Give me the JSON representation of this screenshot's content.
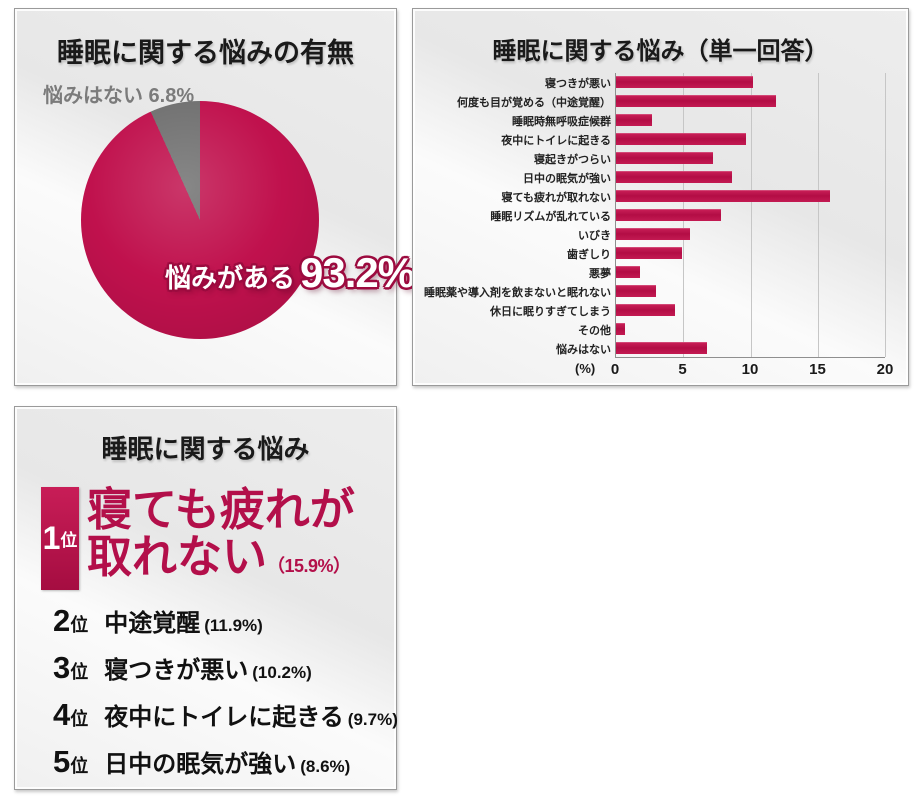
{
  "colors": {
    "crimson": "#c0114d",
    "gray_slice": "#707070",
    "panel_bg": "#ececec"
  },
  "panel1": {
    "title": "睡眠に関する悩みの有無",
    "no_label": "悩みはない 6.8%",
    "yes_label": "悩みがある",
    "yes_value": "93.2%"
  },
  "panel2": {
    "title": "睡眠に関する悩み（単一回答）",
    "unit": "(%)",
    "ticks": [
      "0",
      "5",
      "10",
      "15",
      "20"
    ]
  },
  "panel3": {
    "title": "睡眠に関する悩み",
    "rank1": {
      "rank": "1",
      "suffix": "位",
      "line1": "寝ても疲れが",
      "line2": "取れない",
      "pct": "（15.9%）"
    },
    "ranks": [
      {
        "rank": "2",
        "suffix": "位",
        "label": "中途覚醒",
        "pct": "(11.9%)"
      },
      {
        "rank": "3",
        "suffix": "位",
        "label": "寝つきが悪い",
        "pct": "(10.2%)"
      },
      {
        "rank": "4",
        "suffix": "位",
        "label": "夜中にトイレに起きる",
        "pct": "(9.7%)"
      },
      {
        "rank": "5",
        "suffix": "位",
        "label": "日中の眠気が強い",
        "pct": "(8.6%)"
      }
    ]
  },
  "chart_data": [
    {
      "type": "pie",
      "title": "睡眠に関する悩みの有無",
      "labels": [
        "悩みがある",
        "悩みはない"
      ],
      "values": [
        93.2,
        6.8
      ],
      "colors": [
        "#c0114d",
        "#707070"
      ],
      "start_angle_deg": 0,
      "direction": "clockwise"
    },
    {
      "type": "bar",
      "orientation": "horizontal",
      "title": "睡眠に関する悩み（単一回答）",
      "categories": [
        "寝つきが悪い",
        "何度も目が覚める（中途覚醒）",
        "睡眠時無呼吸症候群",
        "夜中にトイレに起きる",
        "寝起きがつらい",
        "日中の眠気が強い",
        "寝ても疲れが取れない",
        "睡眠リズムが乱れている",
        "いびき",
        "歯ぎしり",
        "悪夢",
        "睡眠薬や導入剤を飲まないと眠れない",
        "休日に眠りすぎてしまう",
        "その他",
        "悩みはない"
      ],
      "values": [
        10.2,
        11.9,
        2.7,
        9.7,
        7.2,
        8.6,
        15.9,
        7.8,
        5.5,
        4.9,
        1.8,
        3.0,
        4.4,
        0.7,
        6.8
      ],
      "xlabel": "(%)",
      "xlim": [
        0,
        20
      ],
      "xticks": [
        0,
        5,
        10,
        15,
        20
      ],
      "grid": true,
      "bar_color": "#c0114d"
    }
  ]
}
